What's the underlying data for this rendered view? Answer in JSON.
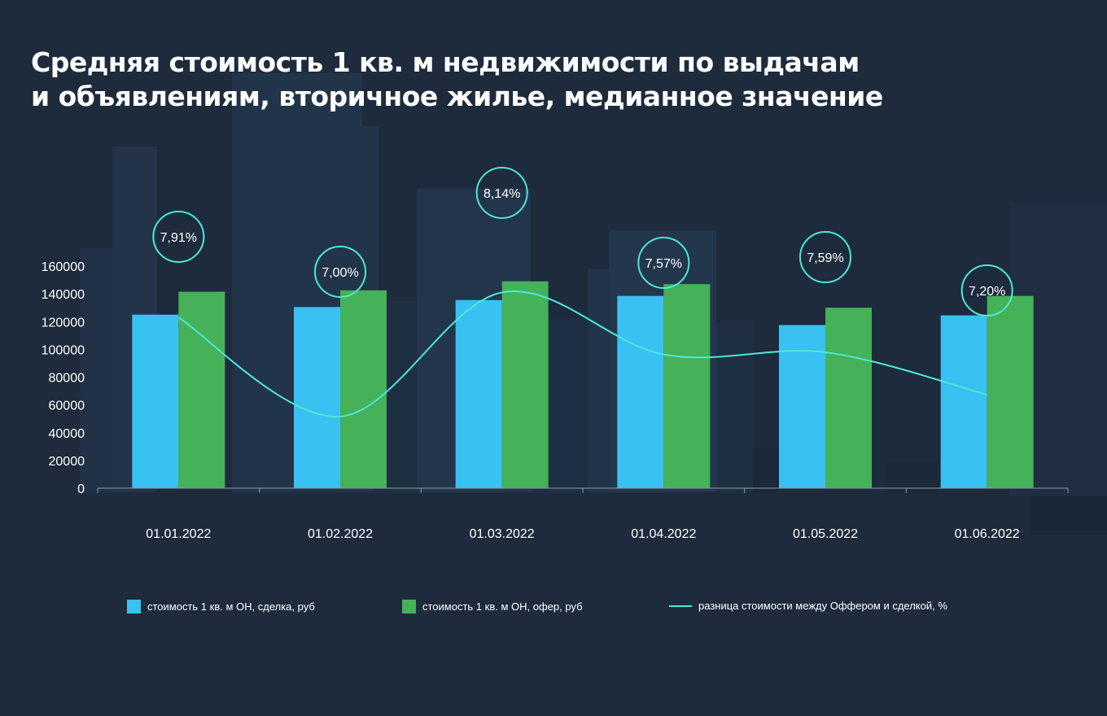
{
  "title": {
    "line1": "Средняя стоимость 1 кв. м недвижимости по выдачам",
    "line2": "и объявлениям, вторичное жилье, медианное значение"
  },
  "colors": {
    "background": "#1d2b3d",
    "deal_bar": "#39c1f1",
    "offer_bar": "#45b159",
    "diff_line": "#4de8d6",
    "text": "#ffffff",
    "axis": "#8a98a8"
  },
  "chart_data": {
    "type": "bar",
    "categories": [
      "01.01.2022",
      "01.02.2022",
      "01.03.2022",
      "01.04.2022",
      "01.05.2022",
      "01.06.2022"
    ],
    "series": [
      {
        "name": "стоимость 1 кв. м ОН, сделка, руб",
        "type": "bar",
        "values": [
          125000,
          130500,
          135500,
          138500,
          117500,
          124500
        ]
      },
      {
        "name": "стоимость 1 кв. м ОН, офер, руб",
        "type": "bar",
        "values": [
          141500,
          142500,
          149000,
          147000,
          130000,
          138500
        ]
      },
      {
        "name": "разница стоимости между Оффером и сделкой, %",
        "type": "line",
        "values": [
          7.91,
          7.0,
          8.14,
          7.57,
          7.59,
          7.2
        ]
      }
    ],
    "y_ticks": [
      "0",
      "20000",
      "40000",
      "60000",
      "80000",
      "100000",
      "120000",
      "140000",
      "160000"
    ],
    "ylim": [
      0,
      160000
    ],
    "diff_labels": [
      "7,91%",
      "7,00%",
      "8,14%",
      "7,57%",
      "7,59%",
      "7,20%"
    ],
    "legend_position": "bottom",
    "grid": false
  }
}
